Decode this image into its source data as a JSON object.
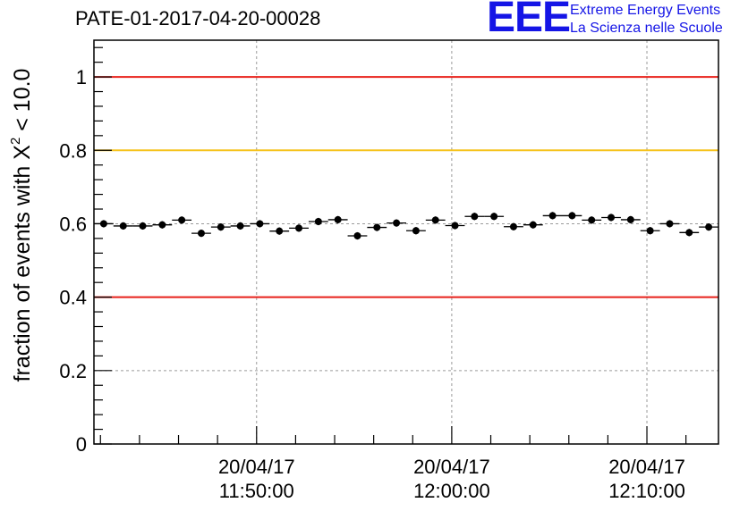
{
  "header": {
    "title": "PATE-01-2017-04-20-00028",
    "logo_letters": "EEE",
    "logo_line1": "Extreme Energy Events",
    "logo_line2": "La Scienza nelle Scuole"
  },
  "chart_data": {
    "type": "scatter",
    "ylabel_main": "fraction of events with X",
    "ylabel_sup": "2",
    "ylabel_tail": " < 10.0",
    "ylim": [
      0,
      1.1
    ],
    "yticks": [
      0,
      0.2,
      0.4,
      0.6,
      0.8,
      1
    ],
    "ytick_labels": [
      "0",
      "0.2",
      "0.4",
      "0.6",
      "0.8",
      "1"
    ],
    "xlim": [
      "11:41:40",
      "12:13:40"
    ],
    "xticks": [
      {
        "time": "11:50:00",
        "date": "20/04/17"
      },
      {
        "time": "12:00:00",
        "date": "20/04/17"
      },
      {
        "time": "12:10:00",
        "date": "20/04/17"
      }
    ],
    "reference_lines": [
      {
        "y": 1.0,
        "color": "#e8201a"
      },
      {
        "y": 0.8,
        "color": "#f6c21b"
      },
      {
        "y": 0.4,
        "color": "#e8201a"
      }
    ],
    "grid": true,
    "series": [
      {
        "x": [
          "11:42:10",
          "11:43:10",
          "11:44:10",
          "11:45:10",
          "11:46:10",
          "11:47:10",
          "11:48:10",
          "11:49:10",
          "11:50:10",
          "11:51:10",
          "11:52:10",
          "11:53:10",
          "11:54:10",
          "11:55:10",
          "11:56:10",
          "11:57:10",
          "11:58:10",
          "11:59:10",
          "12:00:10",
          "12:01:10",
          "12:02:10",
          "12:03:10",
          "12:04:10",
          "12:05:10",
          "12:06:10",
          "12:07:10",
          "12:08:10",
          "12:09:10",
          "12:10:10",
          "12:11:10",
          "12:12:10",
          "12:13:10"
        ],
        "y": [
          0.6,
          0.594,
          0.594,
          0.597,
          0.61,
          0.574,
          0.591,
          0.594,
          0.6,
          0.58,
          0.588,
          0.606,
          0.611,
          0.567,
          0.59,
          0.602,
          0.581,
          0.61,
          0.595,
          0.62,
          0.62,
          0.592,
          0.597,
          0.622,
          0.622,
          0.61,
          0.617,
          0.611,
          0.581,
          0.6,
          0.576,
          0.591
        ],
        "yerr": 0.01
      }
    ]
  }
}
